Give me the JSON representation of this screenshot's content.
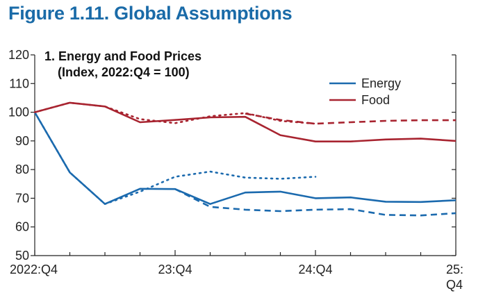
{
  "figure_title": "Figure 1.11.  Global Assumptions",
  "chart_data": {
    "type": "line",
    "title": "1. Energy and Food Prices",
    "subtitle": "(Index, 2022:Q4 = 100)",
    "xlabel": "",
    "ylabel": "",
    "ylim": [
      50,
      120
    ],
    "yticks": [
      50,
      60,
      70,
      80,
      90,
      100,
      110,
      120
    ],
    "x_range": [
      0,
      12
    ],
    "x_ticks": [
      {
        "x": 0,
        "label": "2022:Q4"
      },
      {
        "x": 4,
        "label": "23:Q4"
      },
      {
        "x": 8,
        "label": "24:Q4"
      },
      {
        "x": 12,
        "label": "25:Q4"
      }
    ],
    "legend_position": "top-right",
    "grid": false,
    "series": [
      {
        "name": "Energy",
        "color": "#1b6aae",
        "style": "solid",
        "x": [
          0,
          1,
          2,
          3,
          4,
          5,
          6,
          7,
          8,
          9,
          10,
          11,
          12
        ],
        "values": [
          100,
          79,
          68,
          73.3,
          73.2,
          68,
          72,
          72.3,
          70,
          70.3,
          68.8,
          68.7,
          69.3
        ]
      },
      {
        "name": "Food",
        "color": "#a82430",
        "style": "solid",
        "x": [
          0,
          1,
          2,
          3,
          4,
          5,
          6,
          7,
          8,
          9,
          10,
          11,
          12
        ],
        "values": [
          100,
          103.3,
          102,
          96.5,
          97.3,
          98.2,
          98.4,
          92,
          89.8,
          89.8,
          90.5,
          90.8,
          90
        ]
      },
      {
        "name": "",
        "color": "#1b6aae",
        "style": "dashed",
        "x": [
          4,
          5,
          6,
          7,
          8,
          9,
          10,
          11,
          12
        ],
        "values": [
          73.2,
          67,
          66,
          65.5,
          66,
          66.2,
          64.2,
          64,
          64.8
        ]
      },
      {
        "name": "",
        "color": "#a82430",
        "style": "dashed",
        "x": [
          6,
          7,
          8,
          9,
          10,
          11,
          12
        ],
        "values": [
          99.5,
          97.3,
          96,
          96.5,
          97,
          97.2,
          97.2
        ]
      },
      {
        "name": "",
        "color": "#1b6aae",
        "style": "dotted",
        "x": [
          0,
          1,
          2,
          3,
          4,
          5,
          6,
          7,
          8
        ],
        "values": [
          100,
          79,
          68,
          72.3,
          77.5,
          79.3,
          77.2,
          76.8,
          77.5
        ]
      },
      {
        "name": "",
        "color": "#a82430",
        "style": "dotted",
        "x": [
          0,
          1,
          2,
          3,
          4,
          5,
          6,
          7,
          8
        ],
        "values": [
          100,
          103.3,
          102,
          97.6,
          96.2,
          98.6,
          99.7,
          97,
          96
        ]
      }
    ]
  }
}
